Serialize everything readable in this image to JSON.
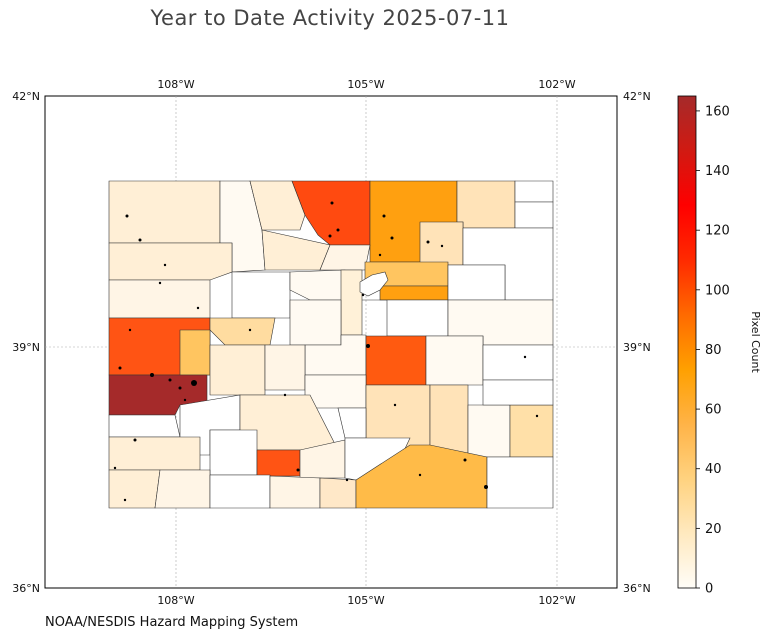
{
  "title": "Year to Date Activity 2025-07-11",
  "credit": "NOAA/NESDIS Hazard Mapping System",
  "axes": {
    "top_ticks": [
      "108°W",
      "105°W",
      "102°W"
    ],
    "bottom_ticks": [
      "108°W",
      "105°W",
      "102°W"
    ],
    "left_ticks": [
      "42°N",
      "39°N",
      "36°N"
    ],
    "right_ticks": [
      "42°N",
      "39°N",
      "36°N"
    ]
  },
  "colorbar": {
    "label": "Pixel Count",
    "ticks": [
      "0",
      "20",
      "40",
      "60",
      "80",
      "100",
      "120",
      "140",
      "160"
    ],
    "min": 0,
    "max": 165,
    "stops": [
      "#fffdf8",
      "#ffe9bf",
      "#ffd27f",
      "#ffb347",
      "#ffa000",
      "#ff6a00",
      "#ff2a00",
      "#ff0000",
      "#d11a12",
      "#a52a2a"
    ]
  },
  "chart_data": {
    "type": "choropleth",
    "region": "Colorado counties",
    "lon_range": [
      -110,
      -101
    ],
    "lat_range": [
      36,
      42
    ],
    "legend": "Pixel Count colorbar (right)",
    "notable_values": [
      {
        "region": "northwest county (Moffat-area)",
        "value": 8
      },
      {
        "region": "Larimer-area county (north central)",
        "value": 85
      },
      {
        "region": "Weld-area county (north)",
        "value": 57
      },
      {
        "region": "Mesa-area county (west central)",
        "value": 80
      },
      {
        "region": "Montrose-area county",
        "value": 30
      },
      {
        "region": "San Miguel/Montrose southwest county",
        "value": 165
      },
      {
        "region": "El Paso-area county",
        "value": 82
      },
      {
        "region": "Saguache/Rio Grande-area county",
        "value": 85
      },
      {
        "region": "Las Animas-area county (southeast)",
        "value": 38
      },
      {
        "region": "Adams/Arapahoe-area counties",
        "value": 35
      }
    ]
  }
}
